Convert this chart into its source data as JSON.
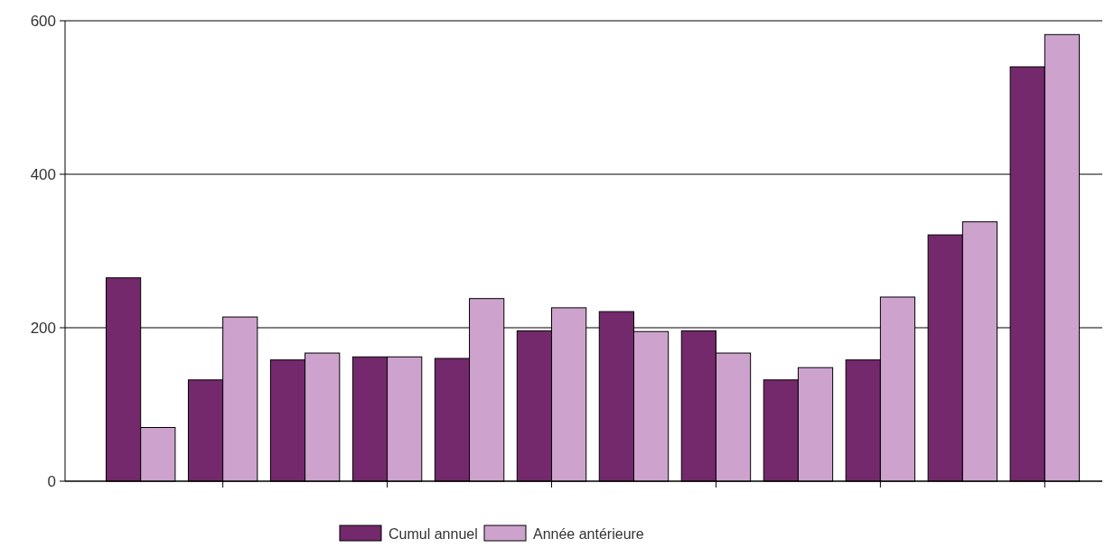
{
  "chart_data": {
    "type": "bar",
    "categories": [
      null,
      null,
      null,
      null,
      null,
      null,
      null,
      null,
      null,
      null,
      null,
      null
    ],
    "series": [
      {
        "name": "Cumul annuel",
        "color": "#73296b",
        "values": [
          265,
          132,
          158,
          162,
          160,
          196,
          221,
          196,
          132,
          158,
          321,
          540
        ]
      },
      {
        "name": "Année antérieure",
        "color": "#cda3cd",
        "values": [
          70,
          214,
          167,
          162,
          238,
          226,
          195,
          167,
          148,
          240,
          338,
          582
        ]
      }
    ],
    "ylim": [
      0,
      600
    ],
    "yticks": [
      0,
      200,
      400,
      600
    ],
    "grid": "y",
    "legend": "bottom"
  }
}
